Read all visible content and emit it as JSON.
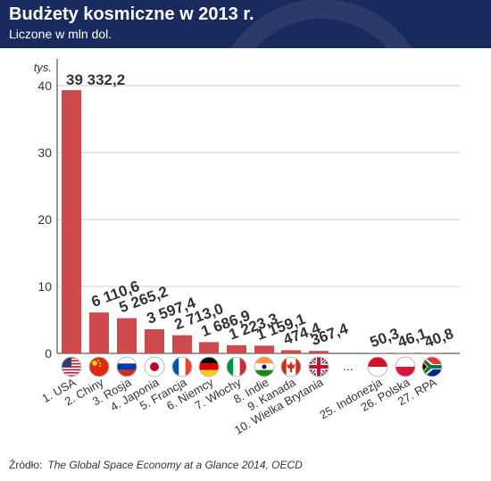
{
  "header": {
    "title": "Budżety kosmiczne w 2013 r.",
    "subtitle": "Liczone w mln dol."
  },
  "colors": {
    "header_bg": "#1b2a5e",
    "bar": "#cf4a4d",
    "axis": "#333333",
    "grid": "#cfcfcf"
  },
  "chart_data": {
    "type": "bar",
    "yunit_label": "tys.",
    "yticks": [
      0,
      10,
      20,
      30,
      40
    ],
    "ylim": [
      0,
      45
    ],
    "grid": true,
    "categories": [
      "1. USA",
      "2. Chiny",
      "3. Rosja",
      "4. Japonia",
      "5. Francja",
      "6. Niemcy",
      "7. Włochy",
      "8. Indie",
      "9. Kanada",
      "10. Wielka Brytania",
      "25. Indonezja",
      "26. Polska",
      "27. RPA"
    ],
    "values": [
      39332.2,
      6110.6,
      5265.2,
      3597.4,
      2713.0,
      1686.9,
      1223.3,
      1159.1,
      474.4,
      367.4,
      50.3,
      46.1,
      40.8
    ],
    "value_labels": [
      "39 332,2",
      "6 110,6",
      "5 265,2",
      "3 597,4",
      "2 713,0",
      "1 686,9",
      "1 223,3",
      "1 159,1",
      "474,4",
      "367,4",
      "50,3",
      "46,1",
      "40,8"
    ],
    "flags": [
      "usa-flag-icon",
      "china-flag-icon",
      "russia-flag-icon",
      "japan-flag-icon",
      "france-flag-icon",
      "germany-flag-icon",
      "italy-flag-icon",
      "india-flag-icon",
      "canada-flag-icon",
      "uk-flag-icon",
      "indonesia-flag-icon",
      "poland-flag-icon",
      "south-africa-flag-icon"
    ],
    "ellipsis": "..."
  },
  "source": {
    "label": "Źródło:",
    "text": "The Global Space Economy at a Glance 2014, OECD"
  }
}
